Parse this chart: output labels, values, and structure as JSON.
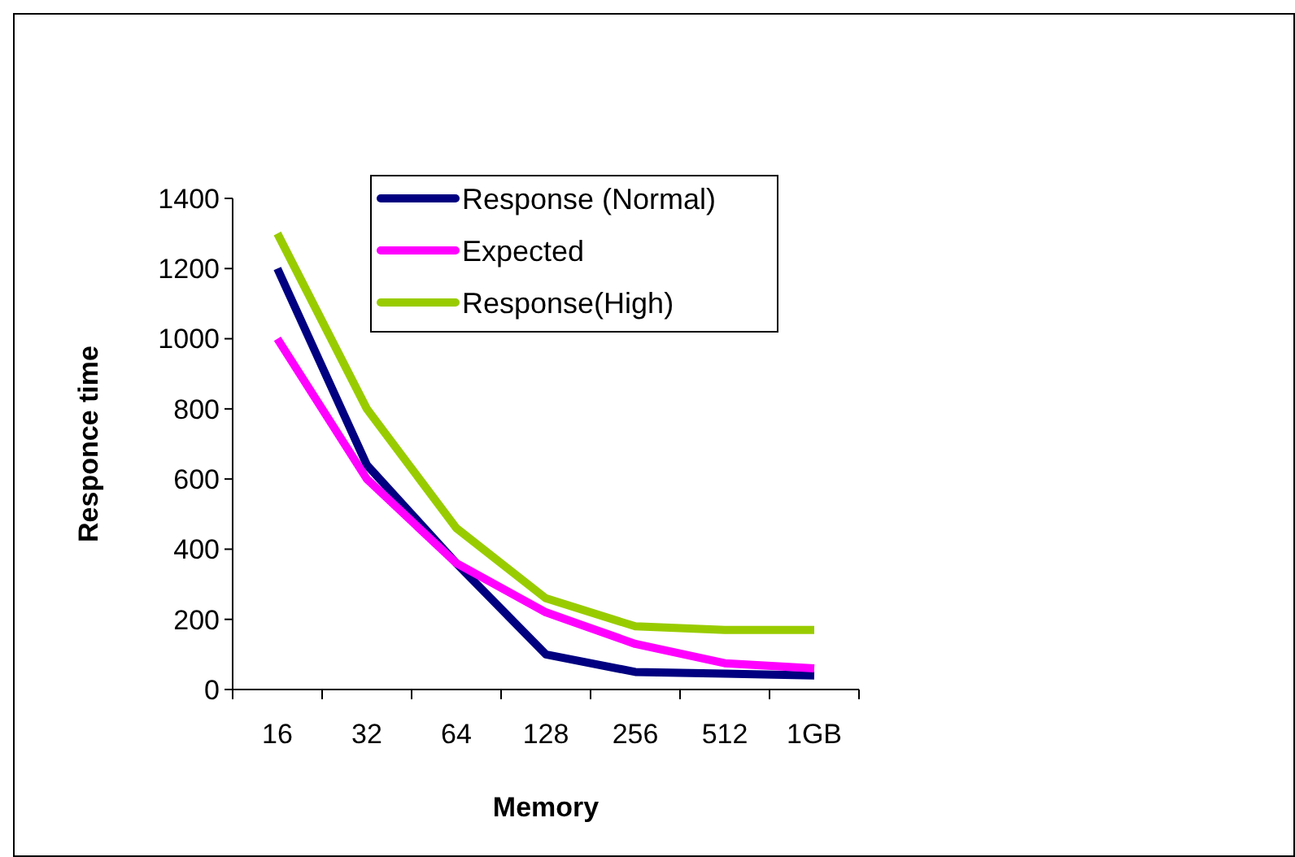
{
  "chart_data": {
    "type": "line",
    "xlabel": "Memory",
    "ylabel": "Responce time",
    "categories": [
      "16",
      "32",
      "64",
      "128",
      "256",
      "512",
      "1GB"
    ],
    "series": [
      {
        "name": "Response (Normal)",
        "color": "#000080",
        "values": [
          1200,
          640,
          360,
          100,
          50,
          45,
          40
        ]
      },
      {
        "name": "Expected",
        "color": "#ff00ff",
        "values": [
          1000,
          600,
          360,
          220,
          130,
          75,
          60
        ]
      },
      {
        "name": "Response(High)",
        "color": "#99cc00",
        "values": [
          1300,
          800,
          460,
          260,
          180,
          170,
          170
        ]
      }
    ],
    "ylim": [
      0,
      1400
    ],
    "yticks": [
      0,
      200,
      400,
      600,
      800,
      1000,
      1200,
      1400
    ],
    "grid": false,
    "legend": "top right",
    "marker": "none",
    "line_style": "solid"
  }
}
